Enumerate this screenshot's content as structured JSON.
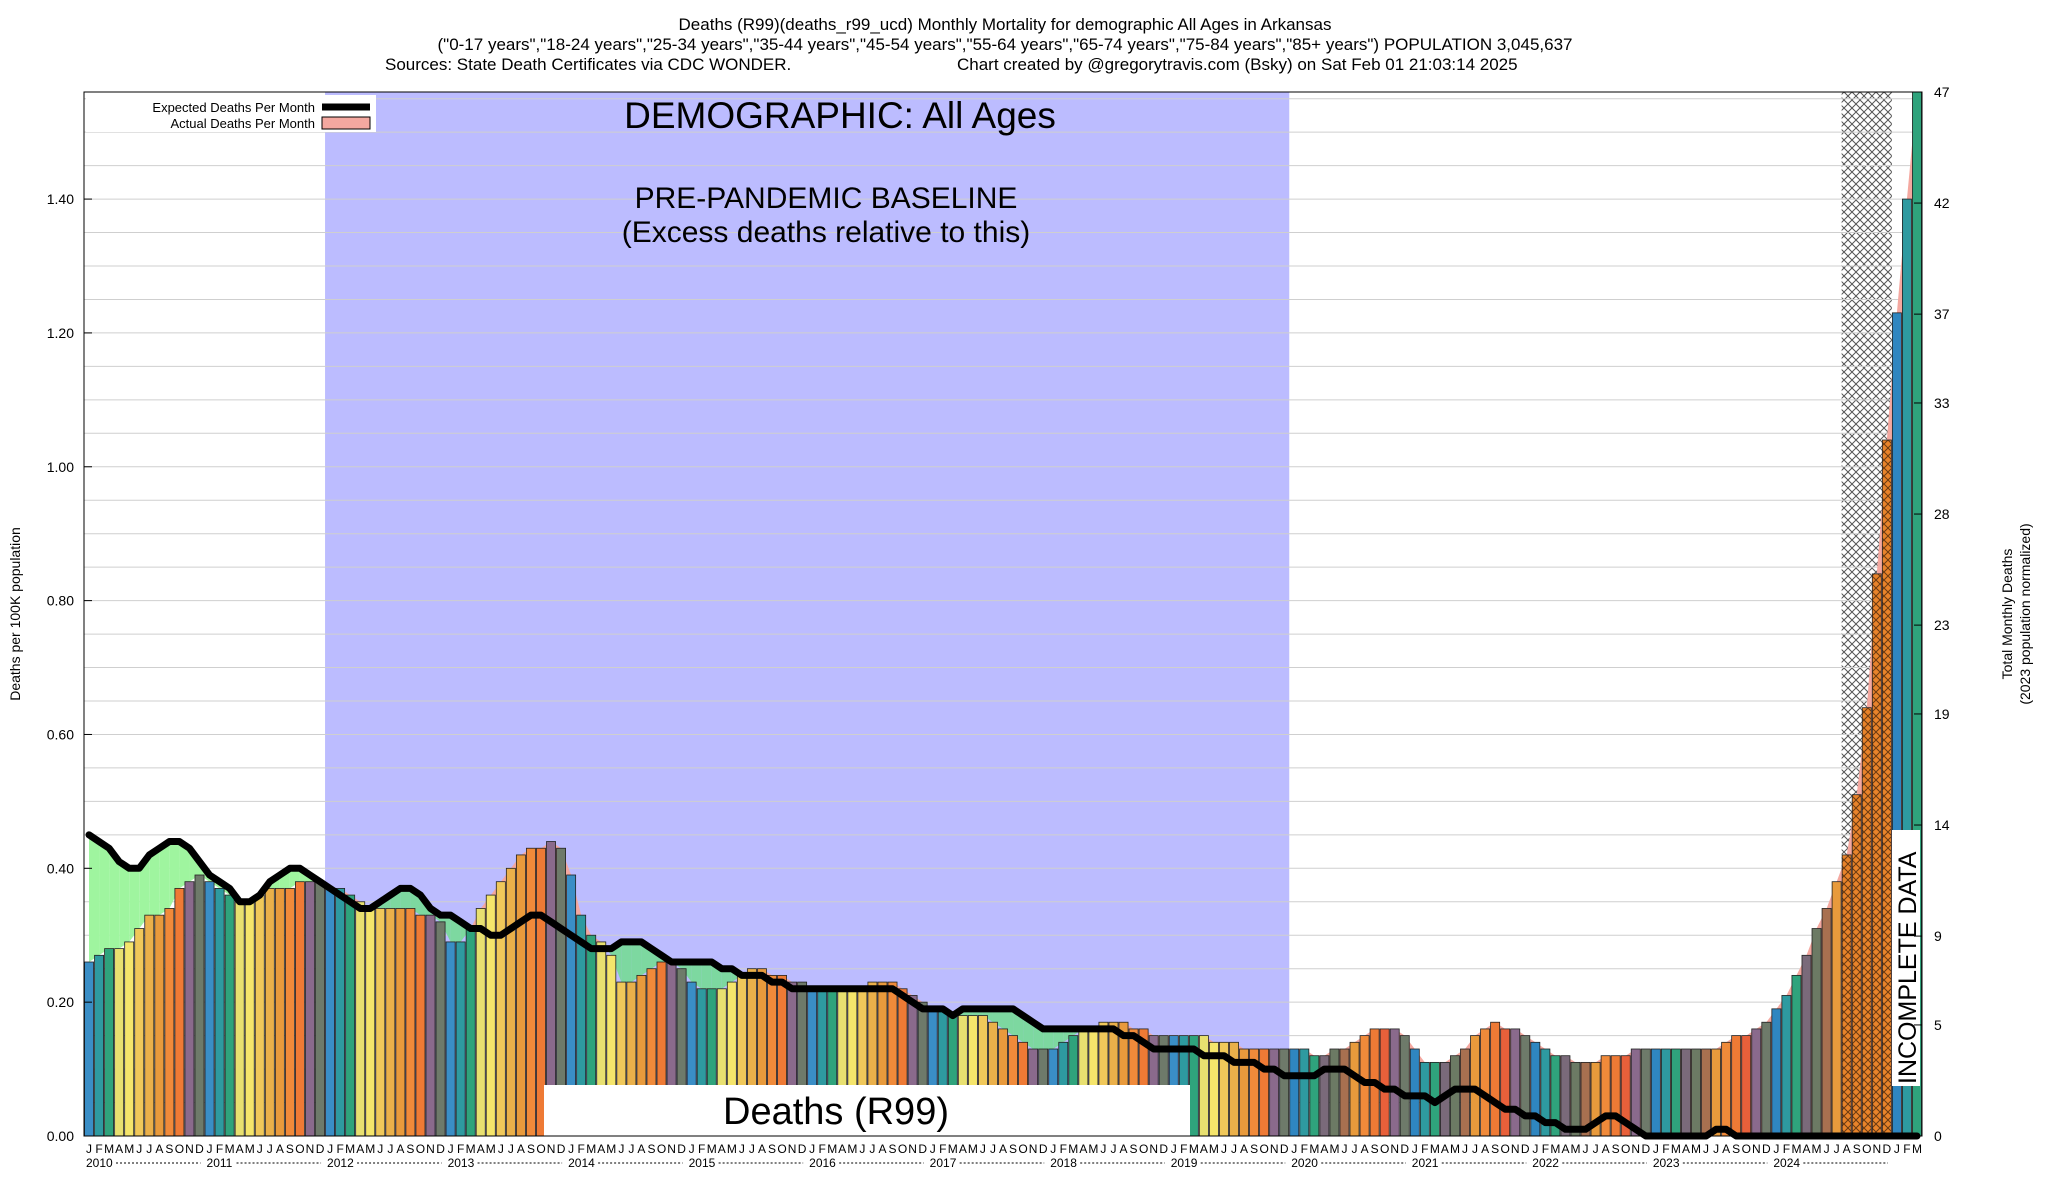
{
  "chart_data": {
    "type": "bar",
    "title": "Deaths (R99)(deaths_r99_ucd) Monthly Mortality for demographic All Ages in Arkansas",
    "subtitle": "(\"0-17 years\",\"18-24 years\",\"25-34 years\",\"35-44 years\",\"45-54 years\",\"55-64 years\",\"65-74 years\",\"75-84 years\",\"85+ years\") POPULATION 3,045,637",
    "sources": "Sources: State Death Certificates via CDC WONDER.",
    "credit": "Chart created by @gregorytravis.com (Bsky) on Sat Feb 01 21:03:14 2025",
    "ylabel": "Deaths per 100K population",
    "y2label_line1": "Total Monthly Deaths",
    "y2label_line2": "(2023 population normalized)",
    "ylim": [
      0,
      1.56
    ],
    "y2lim": [
      0,
      47
    ],
    "y_ticks": [
      "0.00",
      "0.20",
      "0.40",
      "0.60",
      "0.80",
      "1.00",
      "1.20",
      "1.40"
    ],
    "y2_ticks": [
      "0",
      "5",
      "9",
      "14",
      "19",
      "23",
      "28",
      "33",
      "37",
      "42",
      "47"
    ],
    "grid": "horizontal",
    "legend_position": "top-left",
    "legend": [
      {
        "label": "Expected Deaths Per Month",
        "color": "#000000"
      },
      {
        "label": "Actual Deaths Per Month",
        "color": "#f4a8a0"
      }
    ],
    "annotations": {
      "demographic": "DEMOGRAPHIC: All Ages",
      "baseline_line1": "PRE-PANDEMIC BASELINE",
      "baseline_line2": "(Excess deaths relative to this)",
      "cause": "Deaths (R99)",
      "incomplete": "INCOMPLETE DATA"
    },
    "baseline_period": [
      "2012-01",
      "2019-12"
    ],
    "incomplete_months": [
      "2024-08",
      "2024-09",
      "2024-10",
      "2024-11",
      "2024-12"
    ],
    "month_letters": [
      "J",
      "F",
      "M",
      "A",
      "M",
      "J",
      "J",
      "A",
      "S",
      "O",
      "N",
      "D"
    ],
    "years": [
      "2010",
      "2011",
      "2012",
      "2013",
      "2014",
      "2015",
      "2016",
      "2017",
      "2018",
      "2019",
      "2020",
      "2021",
      "2022",
      "2023",
      "2024"
    ],
    "series": [
      {
        "name": "Actual Deaths Per Month",
        "start": "2010-01",
        "values": [
          0.26,
          0.27,
          0.28,
          0.28,
          0.29,
          0.31,
          0.33,
          0.33,
          0.34,
          0.37,
          0.38,
          0.39,
          0.38,
          0.37,
          0.36,
          0.35,
          0.35,
          0.36,
          0.37,
          0.37,
          0.37,
          0.38,
          0.38,
          0.38,
          0.37,
          0.37,
          0.36,
          0.35,
          0.34,
          0.34,
          0.34,
          0.34,
          0.34,
          0.33,
          0.33,
          0.32,
          0.29,
          0.29,
          0.31,
          0.34,
          0.36,
          0.38,
          0.4,
          0.42,
          0.43,
          0.43,
          0.44,
          0.43,
          0.39,
          0.33,
          0.3,
          0.29,
          0.27,
          0.23,
          0.23,
          0.24,
          0.25,
          0.26,
          0.26,
          0.25,
          0.23,
          0.22,
          0.22,
          0.22,
          0.23,
          0.24,
          0.25,
          0.25,
          0.24,
          0.24,
          0.23,
          0.23,
          0.22,
          0.22,
          0.22,
          0.22,
          0.22,
          0.22,
          0.23,
          0.23,
          0.23,
          0.22,
          0.21,
          0.2,
          0.19,
          0.19,
          0.18,
          0.18,
          0.18,
          0.18,
          0.17,
          0.16,
          0.15,
          0.14,
          0.13,
          0.13,
          0.13,
          0.14,
          0.15,
          0.16,
          0.16,
          0.17,
          0.17,
          0.17,
          0.16,
          0.16,
          0.15,
          0.15,
          0.15,
          0.15,
          0.15,
          0.15,
          0.14,
          0.14,
          0.14,
          0.13,
          0.13,
          0.13,
          0.13,
          0.13,
          0.13,
          0.13,
          0.12,
          0.12,
          0.13,
          0.13,
          0.14,
          0.15,
          0.16,
          0.16,
          0.16,
          0.15,
          0.13,
          0.11,
          0.11,
          0.11,
          0.12,
          0.13,
          0.15,
          0.16,
          0.17,
          0.16,
          0.16,
          0.15,
          0.14,
          0.13,
          0.12,
          0.12,
          0.11,
          0.11,
          0.11,
          0.12,
          0.12,
          0.12,
          0.13,
          0.13,
          0.13,
          0.13,
          0.13,
          0.13,
          0.13,
          0.13,
          0.13,
          0.14,
          0.15,
          0.15,
          0.16,
          0.17,
          0.19,
          0.21,
          0.24,
          0.27,
          0.31,
          0.34,
          0.38,
          0.42,
          0.51,
          0.64,
          0.84,
          1.04,
          1.23,
          1.4,
          1.56
        ]
      },
      {
        "name": "Expected Deaths Per Month",
        "start": "2010-01",
        "values": [
          0.45,
          0.44,
          0.43,
          0.41,
          0.4,
          0.4,
          0.42,
          0.43,
          0.44,
          0.44,
          0.43,
          0.41,
          0.39,
          0.38,
          0.37,
          0.35,
          0.35,
          0.36,
          0.38,
          0.39,
          0.4,
          0.4,
          0.39,
          0.38,
          0.37,
          0.36,
          0.35,
          0.34,
          0.34,
          0.35,
          0.36,
          0.37,
          0.37,
          0.36,
          0.34,
          0.33,
          0.33,
          0.32,
          0.31,
          0.31,
          0.3,
          0.3,
          0.31,
          0.32,
          0.33,
          0.33,
          0.32,
          0.31,
          0.3,
          0.29,
          0.28,
          0.28,
          0.28,
          0.29,
          0.29,
          0.29,
          0.28,
          0.27,
          0.26,
          0.26,
          0.26,
          0.26,
          0.26,
          0.25,
          0.25,
          0.24,
          0.24,
          0.24,
          0.23,
          0.23,
          0.22,
          0.22,
          0.22,
          0.22,
          0.22,
          0.22,
          0.22,
          0.22,
          0.22,
          0.22,
          0.22,
          0.21,
          0.2,
          0.19,
          0.19,
          0.19,
          0.18,
          0.19,
          0.19,
          0.19,
          0.19,
          0.19,
          0.19,
          0.18,
          0.17,
          0.16,
          0.16,
          0.16,
          0.16,
          0.16,
          0.16,
          0.16,
          0.16,
          0.15,
          0.15,
          0.14,
          0.13,
          0.13,
          0.13,
          0.13,
          0.13,
          0.12,
          0.12,
          0.12,
          0.11,
          0.11,
          0.11,
          0.1,
          0.1,
          0.09,
          0.09,
          0.09,
          0.09,
          0.1,
          0.1,
          0.1,
          0.09,
          0.08,
          0.08,
          0.07,
          0.07,
          0.06,
          0.06,
          0.06,
          0.05,
          0.06,
          0.07,
          0.07,
          0.07,
          0.06,
          0.05,
          0.04,
          0.04,
          0.03,
          0.03,
          0.02,
          0.02,
          0.01,
          0.01,
          0.01,
          0.02,
          0.03,
          0.03,
          0.02,
          0.01,
          0.0,
          0.0,
          0.0,
          0.0,
          0.0,
          0.0,
          0.0,
          0.01,
          0.01,
          0.0,
          0.0,
          0.0,
          0.0,
          0.0,
          0.0,
          0.0,
          0.0,
          0.0,
          0.0,
          0.0,
          0.0,
          0.0,
          0.0,
          0.0,
          0.0,
          0.0,
          0.0,
          0.0
        ]
      }
    ]
  }
}
